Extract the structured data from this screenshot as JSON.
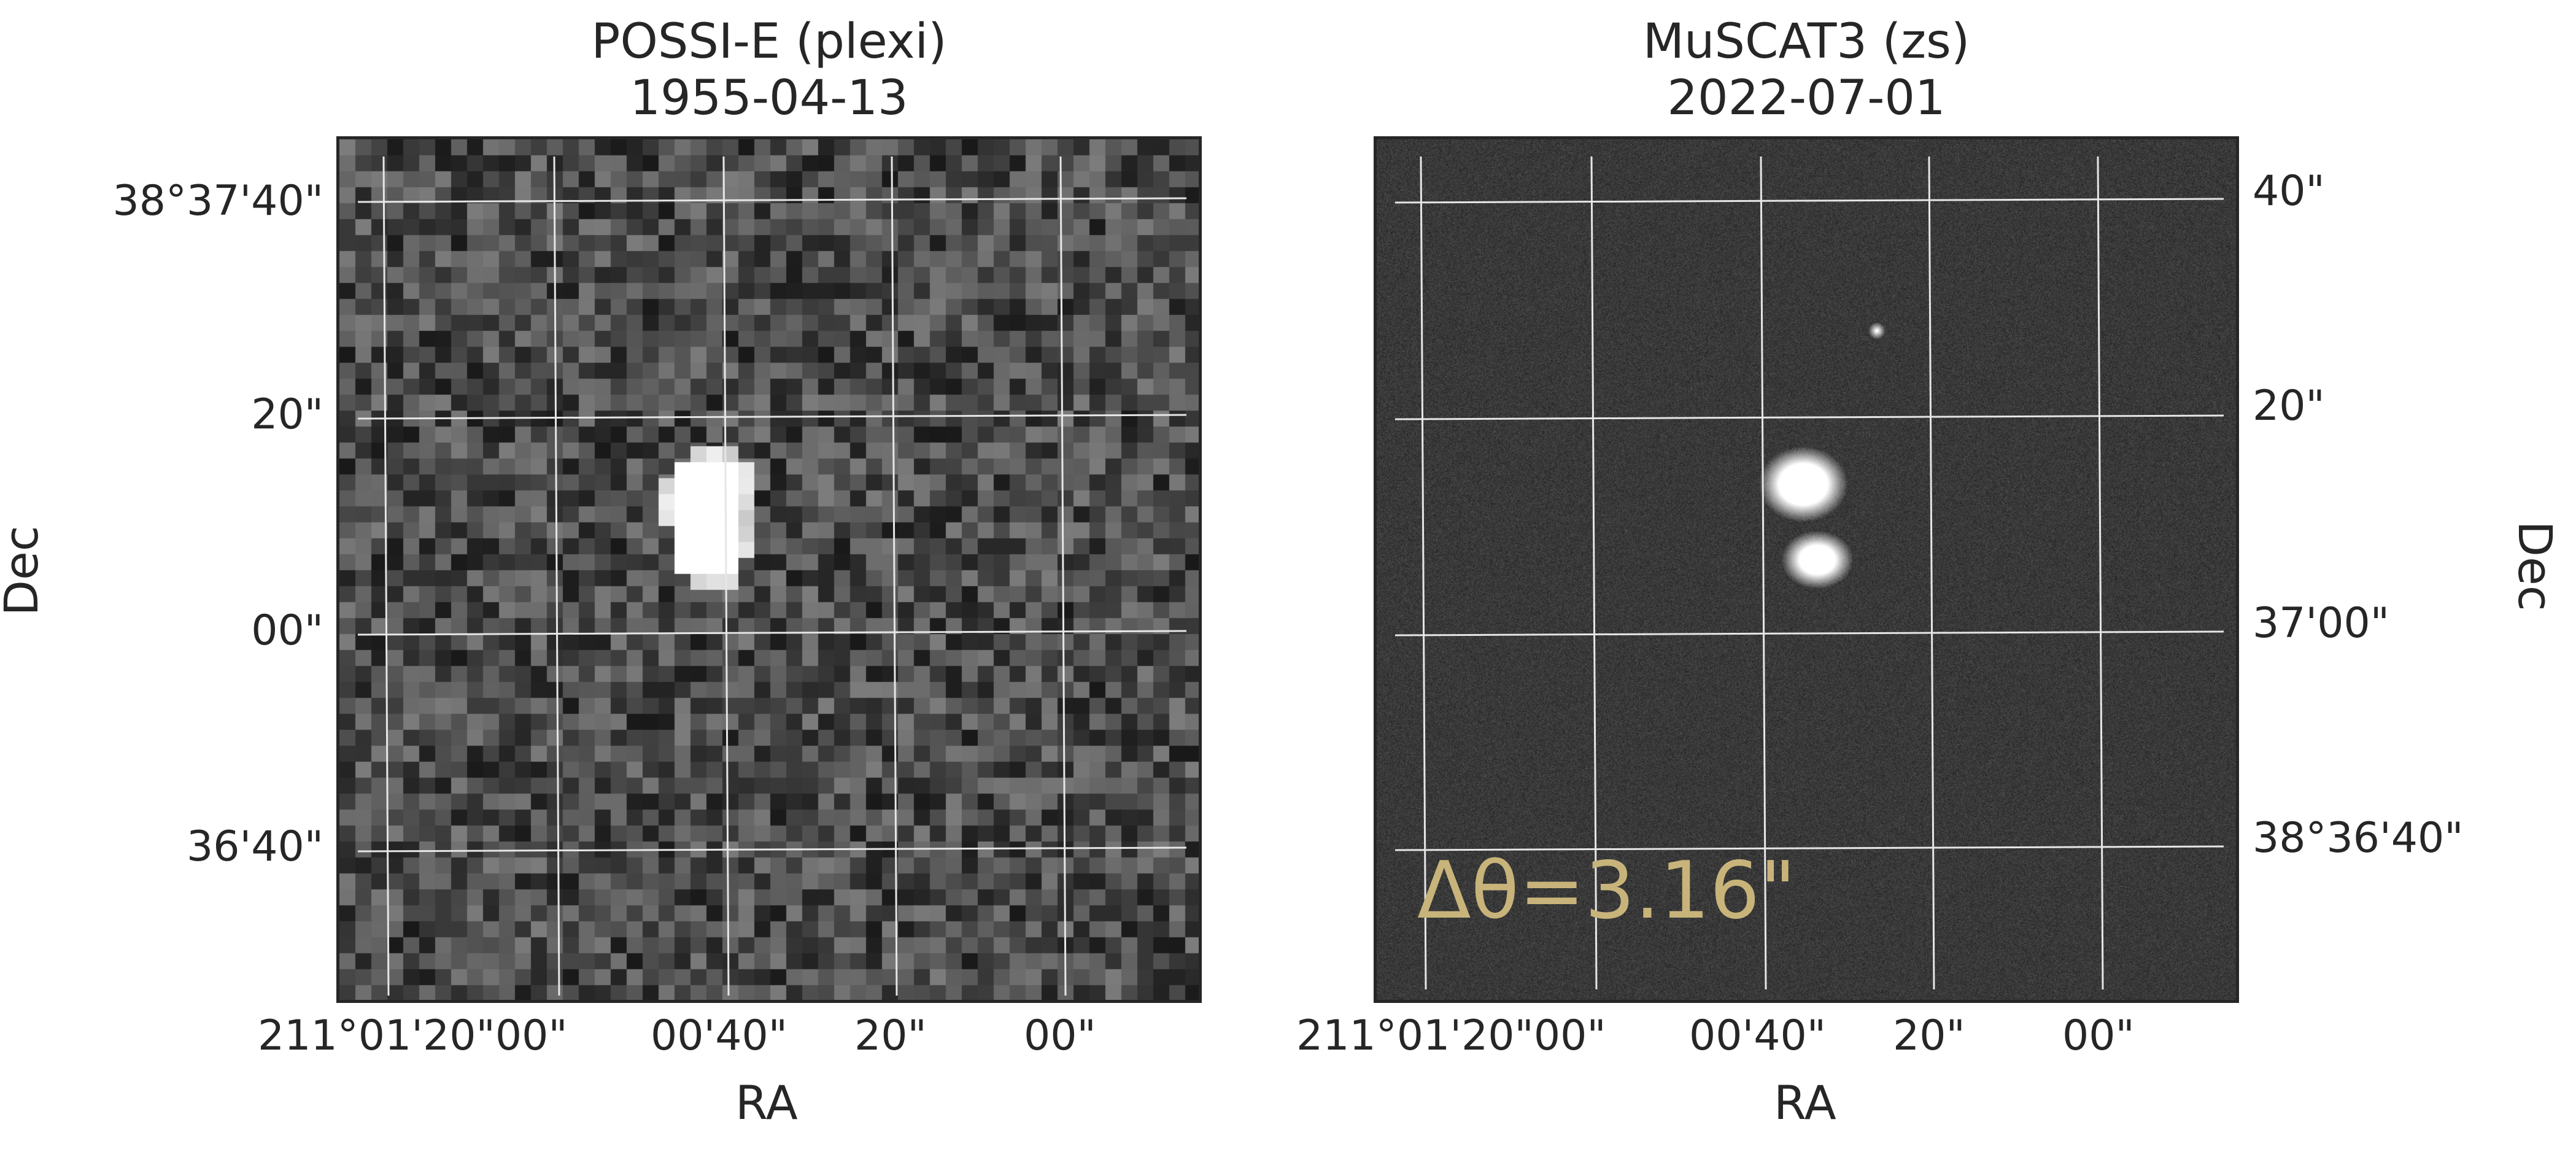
{
  "left_panel": {
    "title_line1": "POSSI-E (plexi)",
    "title_line2": "1955-04-13",
    "dec_ticks": [
      "38°37'40\"",
      "20\"",
      "00\"",
      "36'40\""
    ],
    "ra_ticks": [
      "211°01'20\"00\"",
      "00'40\"",
      "20\"",
      "00\""
    ],
    "xlabel": "RA",
    "ylabel": "Dec"
  },
  "right_panel": {
    "title_line1": "MuSCAT3 (zs)",
    "title_line2": "2022-07-01",
    "dec_ticks": [
      "40\"",
      "20\"",
      "37'00\"",
      "38°36'40\""
    ],
    "ra_ticks": [
      "211°01'20\"00\"",
      "00'40\"",
      "20\"",
      "00\""
    ],
    "xlabel": "RA",
    "ylabel": "Dec",
    "annotation": "Δθ=3.16\""
  },
  "colors": {
    "annotation": "#c8b47a",
    "grid": "#e6e6e6",
    "frame": "#262626"
  }
}
